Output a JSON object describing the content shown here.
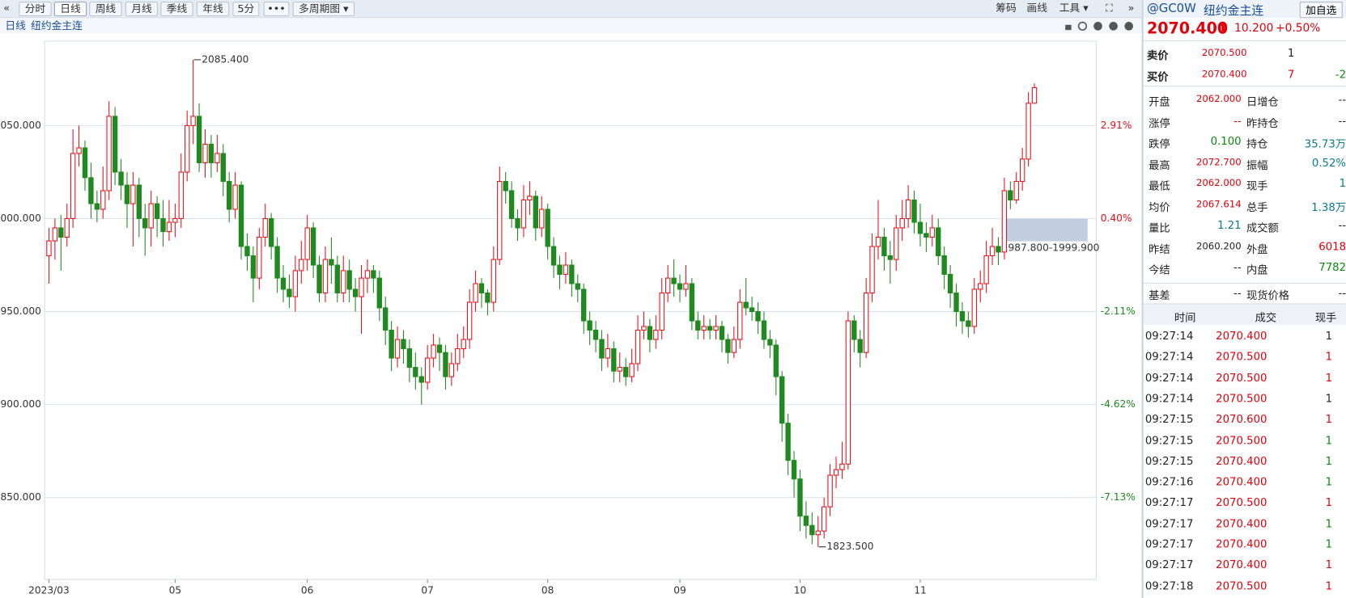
{
  "toolbar": {
    "left": [
      "«",
      "分时",
      "日线",
      "周线",
      "月线",
      "季线",
      "年线",
      "5分",
      "•••",
      "多周期图 ▾"
    ],
    "right": [
      "筹码",
      "画线",
      "工具 ▾",
      "⛶",
      "»"
    ]
  },
  "subbar": {
    "period": "日线",
    "name": "纽约金主连"
  },
  "chart_data": {
    "type": "candlestick",
    "up_color": "#e8101a",
    "down_color": "#1f8a1f",
    "grid": true,
    "ylim": [
      1806,
      2095.4
    ],
    "yticks": [
      {
        "value": 2050,
        "label": "2050.000"
      },
      {
        "value": 2000,
        "label": "2000.000"
      },
      {
        "value": 1950,
        "label": "1950.000"
      },
      {
        "value": 1900,
        "label": "1900.000"
      },
      {
        "value": 1850,
        "label": "1850.000"
      }
    ],
    "y2lim": [
      -9.34,
      5.19
    ],
    "y2ticks": [
      {
        "value": 2.91,
        "label": "2.91%"
      },
      {
        "value": 0.4,
        "label": "0.40%"
      },
      {
        "value": -2.11,
        "label": "-2.11%"
      },
      {
        "value": -4.62,
        "label": "-4.62%"
      },
      {
        "value": -7.13,
        "label": "-7.13%"
      }
    ],
    "categories": [
      "2023/03",
      null,
      null,
      null,
      null,
      null,
      null,
      null,
      null,
      null,
      null,
      null,
      null,
      null,
      null,
      null,
      null,
      null,
      null,
      null,
      null,
      "05",
      null,
      null,
      null,
      null,
      null,
      null,
      null,
      null,
      null,
      null,
      null,
      null,
      null,
      null,
      null,
      null,
      null,
      null,
      null,
      null,
      null,
      "06",
      null,
      null,
      null,
      null,
      null,
      null,
      null,
      null,
      null,
      null,
      null,
      null,
      null,
      null,
      null,
      null,
      null,
      null,
      null,
      "07",
      null,
      null,
      null,
      null,
      null,
      null,
      null,
      null,
      null,
      null,
      null,
      null,
      null,
      null,
      null,
      null,
      null,
      null,
      null,
      "08",
      null,
      null,
      null,
      null,
      null,
      null,
      null,
      null,
      null,
      null,
      null,
      null,
      null,
      null,
      null,
      null,
      null,
      null,
      null,
      null,
      null,
      "09",
      null,
      null,
      null,
      null,
      null,
      null,
      null,
      null,
      null,
      null,
      null,
      null,
      null,
      null,
      null,
      null,
      null,
      null,
      null,
      "10",
      null,
      null,
      null,
      null,
      null,
      null,
      null,
      null,
      null,
      null,
      null,
      null,
      null,
      null,
      null,
      null,
      null,
      null,
      null,
      "11",
      null,
      null,
      null,
      null,
      null,
      null,
      null,
      null,
      null,
      null,
      null,
      null,
      null,
      null,
      null,
      null,
      null,
      null,
      null
    ],
    "candles": [
      [
        1980,
        1995,
        1965,
        1988
      ],
      [
        1988,
        2000,
        1978,
        1995
      ],
      [
        1995,
        2002,
        1972,
        1990
      ],
      [
        1990,
        2008,
        1985,
        2000
      ],
      [
        2000,
        2048,
        1995,
        2035
      ],
      [
        2035,
        2050,
        2028,
        2038
      ],
      [
        2038,
        2042,
        2015,
        2022
      ],
      [
        2022,
        2030,
        2000,
        2008
      ],
      [
        2008,
        2015,
        1998,
        2005
      ],
      [
        2005,
        2028,
        2000,
        2015
      ],
      [
        2015,
        2063,
        2010,
        2055
      ],
      [
        2055,
        2060,
        2018,
        2025
      ],
      [
        2025,
        2032,
        2010,
        2018
      ],
      [
        2018,
        2025,
        1995,
        2008
      ],
      [
        2008,
        2025,
        1985,
        2018
      ],
      [
        2018,
        2022,
        1990,
        2000
      ],
      [
        2000,
        2008,
        1980,
        1995
      ],
      [
        1995,
        2015,
        1985,
        2008
      ],
      [
        2008,
        2012,
        1990,
        2000
      ],
      [
        2000,
        2010,
        1985,
        1993
      ],
      [
        1993,
        2010,
        1988,
        1998
      ],
      [
        1998,
        2008,
        1990,
        2000
      ],
      [
        2000,
        2035,
        1995,
        2025
      ],
      [
        2025,
        2058,
        2020,
        2050
      ],
      [
        2050,
        2085.4,
        2040,
        2055
      ],
      [
        2055,
        2062,
        2025,
        2030
      ],
      [
        2030,
        2048,
        2022,
        2040
      ],
      [
        2040,
        2045,
        2022,
        2030
      ],
      [
        2030,
        2045,
        2025,
        2035
      ],
      [
        2035,
        2040,
        2012,
        2020
      ],
      [
        2020,
        2025,
        1998,
        2005
      ],
      [
        2005,
        2025,
        2000,
        2018
      ],
      [
        2018,
        2020,
        1978,
        1985
      ],
      [
        1985,
        1992,
        1972,
        1980
      ],
      [
        1980,
        1985,
        1955,
        1968
      ],
      [
        1968,
        1995,
        1962,
        1990
      ],
      [
        1990,
        2008,
        1985,
        2000
      ],
      [
        2000,
        2003,
        1978,
        1985
      ],
      [
        1985,
        1990,
        1960,
        1968
      ],
      [
        1968,
        1975,
        1955,
        1962
      ],
      [
        1962,
        1970,
        1952,
        1958
      ],
      [
        1958,
        1980,
        1950,
        1972
      ],
      [
        1972,
        1988,
        1965,
        1978
      ],
      [
        1978,
        2002,
        1972,
        1995
      ],
      [
        1995,
        1998,
        1968,
        1975
      ],
      [
        1975,
        1980,
        1955,
        1960
      ],
      [
        1960,
        1985,
        1955,
        1978
      ],
      [
        1978,
        1990,
        1965,
        1975
      ],
      [
        1975,
        1980,
        1955,
        1960
      ],
      [
        1960,
        1980,
        1955,
        1972
      ],
      [
        1972,
        1978,
        1955,
        1962
      ],
      [
        1962,
        1968,
        1950,
        1958
      ],
      [
        1958,
        1975,
        1938,
        1968
      ],
      [
        1968,
        1978,
        1960,
        1972
      ],
      [
        1972,
        1975,
        1960,
        1968
      ],
      [
        1968,
        1972,
        1945,
        1952
      ],
      [
        1952,
        1958,
        1932,
        1940
      ],
      [
        1940,
        1945,
        1918,
        1925
      ],
      [
        1925,
        1942,
        1920,
        1935
      ],
      [
        1935,
        1940,
        1922,
        1930
      ],
      [
        1930,
        1935,
        1912,
        1920
      ],
      [
        1920,
        1928,
        1908,
        1915
      ],
      [
        1915,
        1920,
        1900,
        1912
      ],
      [
        1912,
        1932,
        1908,
        1925
      ],
      [
        1925,
        1938,
        1920,
        1932
      ],
      [
        1932,
        1936,
        1918,
        1928
      ],
      [
        1928,
        1932,
        1908,
        1915
      ],
      [
        1915,
        1928,
        1910,
        1922
      ],
      [
        1922,
        1938,
        1918,
        1930
      ],
      [
        1930,
        1942,
        1925,
        1935
      ],
      [
        1935,
        1962,
        1930,
        1955
      ],
      [
        1955,
        1972,
        1950,
        1965
      ],
      [
        1965,
        1968,
        1952,
        1960
      ],
      [
        1960,
        1962,
        1948,
        1955
      ],
      [
        1955,
        1985,
        1950,
        1978
      ],
      [
        1978,
        2028,
        1975,
        2020
      ],
      [
        2020,
        2025,
        2008,
        2015
      ],
      [
        2015,
        2020,
        1995,
        2000
      ],
      [
        2000,
        2005,
        1988,
        1995
      ],
      [
        1995,
        2018,
        1990,
        2010
      ],
      [
        2010,
        2020,
        2002,
        2012
      ],
      [
        2012,
        2015,
        1988,
        1995
      ],
      [
        1995,
        2012,
        1990,
        2005
      ],
      [
        2005,
        2008,
        1978,
        1985
      ],
      [
        1985,
        1990,
        1968,
        1975
      ],
      [
        1975,
        1980,
        1962,
        1970
      ],
      [
        1970,
        1982,
        1965,
        1975
      ],
      [
        1975,
        1978,
        1958,
        1965
      ],
      [
        1965,
        1970,
        1955,
        1962
      ],
      [
        1962,
        1965,
        1938,
        1945
      ],
      [
        1945,
        1950,
        1932,
        1940
      ],
      [
        1940,
        1945,
        1928,
        1935
      ],
      [
        1935,
        1940,
        1918,
        1925
      ],
      [
        1925,
        1938,
        1920,
        1930
      ],
      [
        1930,
        1934,
        1912,
        1918
      ],
      [
        1918,
        1928,
        1912,
        1920
      ],
      [
        1920,
        1925,
        1910,
        1915
      ],
      [
        1915,
        1930,
        1912,
        1922
      ],
      [
        1922,
        1948,
        1918,
        1940
      ],
      [
        1940,
        1950,
        1935,
        1942
      ],
      [
        1942,
        1946,
        1928,
        1935
      ],
      [
        1935,
        1948,
        1930,
        1940
      ],
      [
        1940,
        1968,
        1935,
        1960
      ],
      [
        1960,
        1975,
        1955,
        1968
      ],
      [
        1968,
        1978,
        1958,
        1965
      ],
      [
        1965,
        1970,
        1955,
        1962
      ],
      [
        1962,
        1975,
        1958,
        1965
      ],
      [
        1965,
        1968,
        1940,
        1945
      ],
      [
        1945,
        1950,
        1935,
        1940
      ],
      [
        1940,
        1948,
        1935,
        1942
      ],
      [
        1942,
        1946,
        1935,
        1940
      ],
      [
        1940,
        1948,
        1935,
        1942
      ],
      [
        1942,
        1945,
        1928,
        1935
      ],
      [
        1935,
        1938,
        1922,
        1928
      ],
      [
        1928,
        1942,
        1925,
        1935
      ],
      [
        1935,
        1962,
        1930,
        1955
      ],
      [
        1955,
        1968,
        1948,
        1952
      ],
      [
        1952,
        1958,
        1945,
        1950
      ],
      [
        1950,
        1955,
        1938,
        1945
      ],
      [
        1945,
        1950,
        1930,
        1935
      ],
      [
        1935,
        1940,
        1925,
        1932
      ],
      [
        1932,
        1935,
        1905,
        1915
      ],
      [
        1915,
        1918,
        1880,
        1890
      ],
      [
        1890,
        1895,
        1862,
        1870
      ],
      [
        1870,
        1875,
        1850,
        1860
      ],
      [
        1860,
        1865,
        1832,
        1840
      ],
      [
        1840,
        1848,
        1828,
        1835
      ],
      [
        1835,
        1842,
        1825,
        1830
      ],
      [
        1830,
        1840,
        1823.5,
        1832
      ],
      [
        1832,
        1850,
        1828,
        1845
      ],
      [
        1845,
        1868,
        1840,
        1862
      ],
      [
        1862,
        1872,
        1855,
        1865
      ],
      [
        1865,
        1880,
        1860,
        1868
      ],
      [
        1868,
        1950,
        1865,
        1945
      ],
      [
        1945,
        1948,
        1928,
        1935
      ],
      [
        1935,
        1940,
        1920,
        1928
      ],
      [
        1928,
        1968,
        1925,
        1960
      ],
      [
        1960,
        1992,
        1955,
        1985
      ],
      [
        1985,
        2010,
        1978,
        1990
      ],
      [
        1990,
        1995,
        1972,
        1980
      ],
      [
        1980,
        1988,
        1965,
        1978
      ],
      [
        1978,
        2002,
        1972,
        1995
      ],
      [
        1995,
        2010,
        1988,
        2000
      ],
      [
        2000,
        2018,
        1995,
        2010
      ],
      [
        2010,
        2015,
        1992,
        1998
      ],
      [
        1998,
        2008,
        1985,
        1992
      ],
      [
        1992,
        1998,
        1982,
        1990
      ],
      [
        1990,
        2002,
        1985,
        1995
      ],
      [
        1995,
        2000,
        1975,
        1980
      ],
      [
        1980,
        1985,
        1962,
        1970
      ],
      [
        1970,
        1975,
        1952,
        1960
      ],
      [
        1960,
        1965,
        1942,
        1950
      ],
      [
        1950,
        1955,
        1938,
        1945
      ],
      [
        1945,
        1950,
        1936,
        1942
      ],
      [
        1942,
        1968,
        1938,
        1962
      ],
      [
        1962,
        1972,
        1955,
        1965
      ],
      [
        1965,
        1988,
        1960,
        1980
      ],
      [
        1980,
        1995,
        1975,
        1985
      ],
      [
        1985,
        1990,
        1975,
        1982
      ],
      [
        1982,
        2022,
        1978,
        2015
      ],
      [
        2015,
        2020,
        2005,
        2010
      ],
      [
        2010,
        2025,
        2008,
        2020
      ],
      [
        2020,
        2038,
        2015,
        2032
      ],
      [
        2032,
        2068,
        2028,
        2062
      ],
      [
        2062,
        2072.7,
        2062,
        2070.4
      ]
    ],
    "annotations": [
      {
        "value": 2085.4,
        "label": "2085.400"
      },
      {
        "value": 1823.5,
        "label": "1823.500"
      }
    ],
    "zone": {
      "low": 1987.8,
      "high": 1999.9,
      "label": "1987.800-1999.900"
    }
  },
  "quote": {
    "symbol": "@GC0W",
    "name": "纽约金主连",
    "add": "加自选",
    "last": "2070.400",
    "arrow": "⬆",
    "change": "10.200",
    "change_pct": "+0.50%"
  },
  "book": {
    "ask": {
      "label": "卖价",
      "price": "2070.500",
      "size": "1"
    },
    "bid": {
      "label": "买价",
      "price": "2070.400",
      "size": "7",
      "delta": "-2"
    }
  },
  "fields": [
    [
      "开盘",
      "2062.000",
      "日增仓",
      "--"
    ],
    [
      "涨停",
      "--",
      "昨持仓",
      "--"
    ],
    [
      "跌停",
      "0.100",
      "持仓",
      "35.73万"
    ],
    [
      "最高",
      "2072.700",
      "振幅",
      "0.52%"
    ],
    [
      "最低",
      "2062.000",
      "现手",
      "1"
    ],
    [
      "均价",
      "2067.614",
      "总手",
      "1.38万"
    ],
    [
      "量比",
      "1.21",
      "成交额",
      "--"
    ],
    [
      "昨结",
      "2060.200",
      "外盘",
      "6018"
    ],
    [
      "今结",
      "--",
      "内盘",
      "7782"
    ],
    [
      "基差",
      "--",
      "现货价格",
      "--"
    ]
  ],
  "trades": {
    "header": [
      "时间",
      "成交",
      "现手"
    ],
    "rows": [
      [
        "09:27:14",
        "2070.400",
        "1"
      ],
      [
        "09:27:14",
        "2070.500",
        "1"
      ],
      [
        "09:27:14",
        "2070.500",
        "1"
      ],
      [
        "09:27:14",
        "2070.500",
        "1"
      ],
      [
        "09:27:15",
        "2070.600",
        "1"
      ],
      [
        "09:27:15",
        "2070.500",
        "1"
      ],
      [
        "09:27:15",
        "2070.400",
        "1"
      ],
      [
        "09:27:16",
        "2070.400",
        "1"
      ],
      [
        "09:27:17",
        "2070.500",
        "1"
      ],
      [
        "09:27:17",
        "2070.400",
        "1"
      ],
      [
        "09:27:17",
        "2070.400",
        "1"
      ],
      [
        "09:27:17",
        "2070.400",
        "1"
      ],
      [
        "09:27:18",
        "2070.500",
        "1"
      ]
    ]
  }
}
